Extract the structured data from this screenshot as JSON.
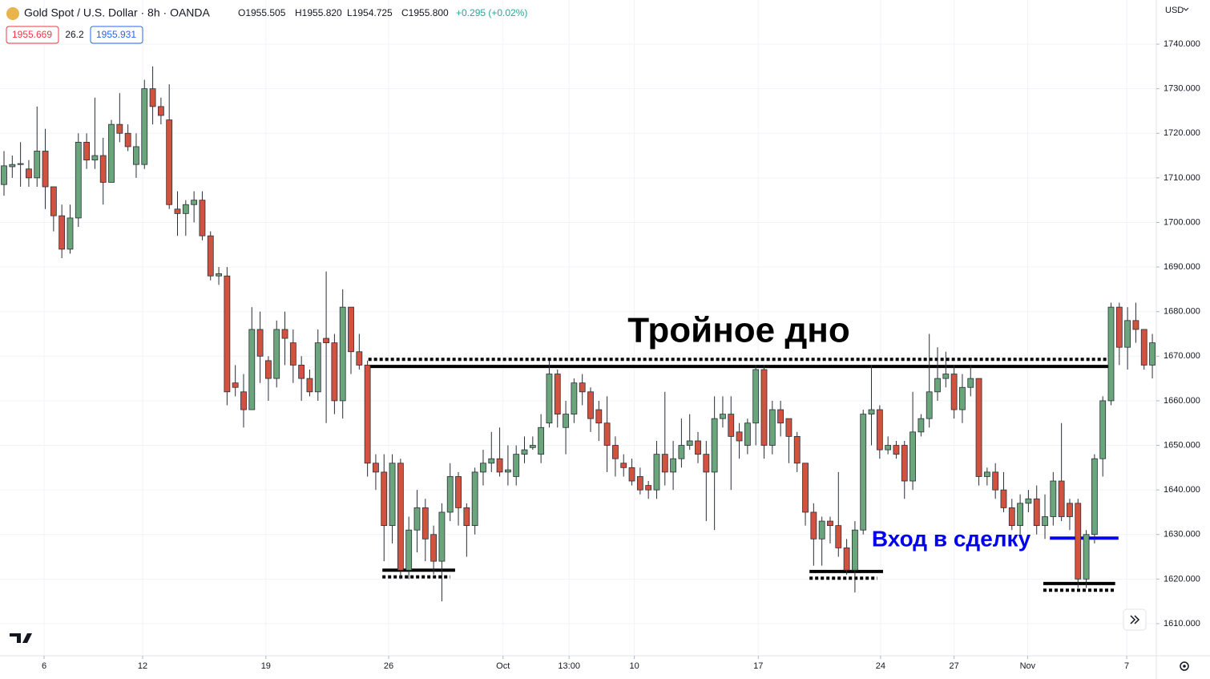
{
  "header": {
    "title": "Gold Spot / U.S. Dollar · 8h · OANDA",
    "ohlc": [
      "O1955.505",
      "H1955.820",
      "L1954.725",
      "C1955.800",
      "+0.295 (+0.02%)"
    ],
    "bid": "1955.669",
    "spread": "26.2",
    "ask": "1955.931",
    "currency": "USD"
  },
  "chart_data": {
    "type": "candlestick",
    "open": [
      1708.5,
      1712.5,
      1713,
      1712,
      1710,
      1716,
      1708,
      1701.5,
      1694,
      1701,
      1718,
      1714,
      1715,
      1709,
      1722,
      1720,
      1713,
      1713,
      1730,
      1726,
      1723,
      1703,
      1702,
      1704,
      1705,
      1697,
      1688,
      1688,
      1664,
      1662,
      1658,
      1676,
      1669,
      1665,
      1676,
      1673,
      1668,
      1665,
      1662,
      1674,
      1673,
      1660,
      1681,
      1671,
      1668,
      1646,
      1644,
      1632,
      1646,
      1622,
      1631,
      1636,
      1630,
      1624,
      1635,
      1643,
      1636,
      1632,
      1644,
      1646,
      1647,
      1644,
      1643,
      1648,
      1649.5,
      1648,
      1655,
      1666,
      1654,
      1657,
      1664,
      1662,
      1658,
      1655,
      1650,
      1646,
      1645,
      1643,
      1641,
      1640,
      1648,
      1644,
      1647,
      1650,
      1651,
      1648,
      1644,
      1656,
      1657,
      1653,
      1650,
      1655,
      1667,
      1650,
      1658,
      1656,
      1652,
      1646,
      1635,
      1629,
      1633,
      1632,
      1627,
      1622,
      1631,
      1657,
      1658,
      1649,
      1650,
      1650,
      1642,
      1653,
      1656,
      1662,
      1665,
      1666,
      1658,
      1663,
      1665,
      1643,
      1644,
      1640,
      1636,
      1632,
      1637,
      1638,
      1632,
      1634,
      1642,
      1637,
      1637,
      1620,
      1630,
      1647,
      1660,
      1681,
      1672,
      1678,
      1676,
      1668
    ],
    "high": [
      1716,
      1715,
      1718,
      1714,
      1726,
      1721,
      1708,
      1704,
      1704,
      1720,
      1720,
      1728,
      1719,
      1723,
      1729,
      1722,
      1720,
      1732,
      1735,
      1728,
      1731,
      1707,
      1705,
      1707,
      1707,
      1698,
      1690,
      1690,
      1668,
      1666,
      1681,
      1680,
      1670,
      1678,
      1680,
      1676,
      1670,
      1667,
      1676,
      1689,
      1675,
      1685,
      1681,
      1675,
      1669,
      1648,
      1648,
      1648,
      1647,
      1634,
      1640,
      1638,
      1632,
      1637,
      1646,
      1644,
      1637,
      1645,
      1649,
      1653,
      1654,
      1650,
      1650,
      1652,
      1652,
      1657,
      1669,
      1667,
      1660,
      1665,
      1666,
      1663,
      1660,
      1661,
      1652,
      1648,
      1647,
      1645,
      1642,
      1651,
      1662,
      1651,
      1656,
      1657,
      1653,
      1651,
      1661,
      1661,
      1661,
      1655,
      1656,
      1668,
      1668,
      1660,
      1660,
      1656,
      1653,
      1646,
      1637,
      1634,
      1634,
      1644,
      1629,
      1633,
      1658,
      1668,
      1659,
      1652,
      1651,
      1651,
      1662,
      1657,
      1675,
      1672,
      1671,
      1668,
      1666,
      1668,
      1665,
      1645,
      1646,
      1644,
      1638,
      1639,
      1640,
      1641,
      1639,
      1644,
      1655,
      1638,
      1638,
      1631,
      1648,
      1661,
      1682,
      1682,
      1681,
      1682,
      1676,
      1675
    ],
    "low": [
      1706,
      1710,
      1708,
      1708,
      1708,
      1703,
      1698,
      1692,
      1693,
      1699,
      1712,
      1712,
      1704,
      1709,
      1718,
      1716,
      1710,
      1712,
      1722,
      1722,
      1703,
      1697,
      1697,
      1700,
      1696,
      1687,
      1686,
      1659,
      1661,
      1654,
      1658,
      1664,
      1660,
      1663,
      1668,
      1664,
      1660,
      1661,
      1660,
      1655,
      1657,
      1656,
      1666,
      1667,
      1643,
      1640,
      1624,
      1628,
      1620,
      1620,
      1626,
      1624,
      1621,
      1615,
      1633,
      1632,
      1625,
      1630,
      1641,
      1644,
      1643,
      1641,
      1641,
      1646,
      1649,
      1646,
      1654,
      1654,
      1648,
      1655,
      1659,
      1653,
      1651,
      1644,
      1643,
      1643,
      1641,
      1639,
      1638,
      1638,
      1641,
      1640,
      1645,
      1649,
      1646,
      1633,
      1631,
      1654,
      1640,
      1647,
      1648,
      1650,
      1647,
      1648,
      1652,
      1646,
      1644,
      1632,
      1623,
      1623,
      1628,
      1625,
      1621,
      1617,
      1630,
      1650,
      1647,
      1648,
      1647,
      1638,
      1640,
      1652,
      1654,
      1660,
      1663,
      1656,
      1655,
      1661,
      1641,
      1641,
      1638,
      1635,
      1631,
      1630,
      1635,
      1630,
      1629,
      1632,
      1633,
      1631,
      1618,
      1618,
      1628,
      1643,
      1659,
      1668,
      1667,
      1673,
      1667,
      1665
    ],
    "close": [
      1712.7,
      1713,
      1713.2,
      1710,
      1716,
      1708,
      1701.5,
      1694,
      1701,
      1718,
      1714,
      1715,
      1709,
      1722,
      1720,
      1717,
      1717,
      1730,
      1726,
      1724,
      1704,
      1702,
      1704,
      1705,
      1697,
      1688,
      1688.5,
      1662,
      1663,
      1658,
      1676,
      1670,
      1665,
      1676,
      1674,
      1668,
      1665,
      1662,
      1673,
      1673,
      1660,
      1681,
      1671,
      1668,
      1646,
      1644,
      1632,
      1646,
      1622,
      1631,
      1636,
      1629,
      1624,
      1635,
      1643,
      1636,
      1632,
      1644,
      1646,
      1647,
      1644,
      1644.5,
      1648,
      1649,
      1650,
      1654,
      1666,
      1657,
      1657,
      1664,
      1662,
      1656,
      1655,
      1650,
      1647,
      1645,
      1642,
      1640,
      1640,
      1648,
      1644,
      1647,
      1650,
      1651,
      1648,
      1644,
      1656,
      1657,
      1652,
      1651,
      1655,
      1667,
      1650,
      1658,
      1655,
      1652,
      1646,
      1635,
      1629,
      1633,
      1632,
      1627,
      1622,
      1631,
      1657,
      1658,
      1649,
      1650,
      1648,
      1642,
      1653,
      1656,
      1662,
      1665,
      1666,
      1658,
      1663,
      1665,
      1643,
      1644,
      1640,
      1636,
      1632,
      1637,
      1638,
      1632,
      1634,
      1642,
      1634,
      1634,
      1620,
      1630,
      1647,
      1660,
      1681,
      1672,
      1678,
      1676,
      1668,
      1673
    ],
    "up_color": "#6aa57c",
    "down_color": "#d1533f",
    "grid": true,
    "xlim": [
      -0.485,
      139.48
    ],
    "xticks": [
      {
        "value": 4.85,
        "label": "6"
      },
      {
        "value": 16.78,
        "label": "12"
      },
      {
        "value": 31.7,
        "label": "19"
      },
      {
        "value": 46.56,
        "label": "26"
      },
      {
        "value": 60.4,
        "label": "Oct"
      },
      {
        "value": 68.4,
        "label": "13:00"
      },
      {
        "value": 76.3,
        "label": "10"
      },
      {
        "value": 91.3,
        "label": "17"
      },
      {
        "value": 106.1,
        "label": "24"
      },
      {
        "value": 115.0,
        "label": "27"
      },
      {
        "value": 123.9,
        "label": "Nov"
      },
      {
        "value": 135.9,
        "label": "7"
      }
    ],
    "ylim": [
      1602.8,
      1749.9
    ],
    "yticks": [
      {
        "value": 1610,
        "label": "1610.000"
      },
      {
        "value": 1620,
        "label": "1620.000"
      },
      {
        "value": 1630,
        "label": "1630.000"
      },
      {
        "value": 1640,
        "label": "1640.000"
      },
      {
        "value": 1650,
        "label": "1650.000"
      },
      {
        "value": 1660,
        "label": "1660.000"
      },
      {
        "value": 1670,
        "label": "1670.000"
      },
      {
        "value": 1680,
        "label": "1680.000"
      },
      {
        "value": 1690,
        "label": "1690.000"
      },
      {
        "value": 1700,
        "label": "1700.000"
      },
      {
        "value": 1710,
        "label": "1710.000"
      },
      {
        "value": 1720,
        "label": "1720.000"
      },
      {
        "value": 1730,
        "label": "1730.000"
      },
      {
        "value": 1740,
        "label": "1740.000"
      }
    ],
    "annotations": {
      "pattern": "Тройное дно",
      "entry": "Вход в сделку"
    },
    "levels": [
      {
        "y": 1669.3,
        "x": [
          44.1,
          133.7
        ],
        "style": "dotted",
        "color": "#000000"
      },
      {
        "y": 1667.7,
        "x": [
          44.1,
          133.7
        ],
        "style": "solid",
        "color": "#000000"
      },
      {
        "y": 1622,
        "x": [
          45.8,
          54.6
        ],
        "style": "solid",
        "color": "#000000"
      },
      {
        "y": 1620.5,
        "x": [
          45.8,
          54.0
        ],
        "style": "dotted",
        "color": "#000000"
      },
      {
        "y": 1621.7,
        "x": [
          97.5,
          106.4
        ],
        "style": "solid",
        "color": "#000000"
      },
      {
        "y": 1620.2,
        "x": [
          97.5,
          105.7
        ],
        "style": "dotted",
        "color": "#000000"
      },
      {
        "y": 1619,
        "x": [
          125.8,
          134.5
        ],
        "style": "solid",
        "color": "#000000"
      },
      {
        "y": 1617.5,
        "x": [
          125.8,
          134.5
        ],
        "style": "dotted",
        "color": "#000000"
      },
      {
        "y": 1629.2,
        "x": [
          126.6,
          134.9
        ],
        "style": "solid",
        "color": "#0000ee"
      }
    ]
  }
}
